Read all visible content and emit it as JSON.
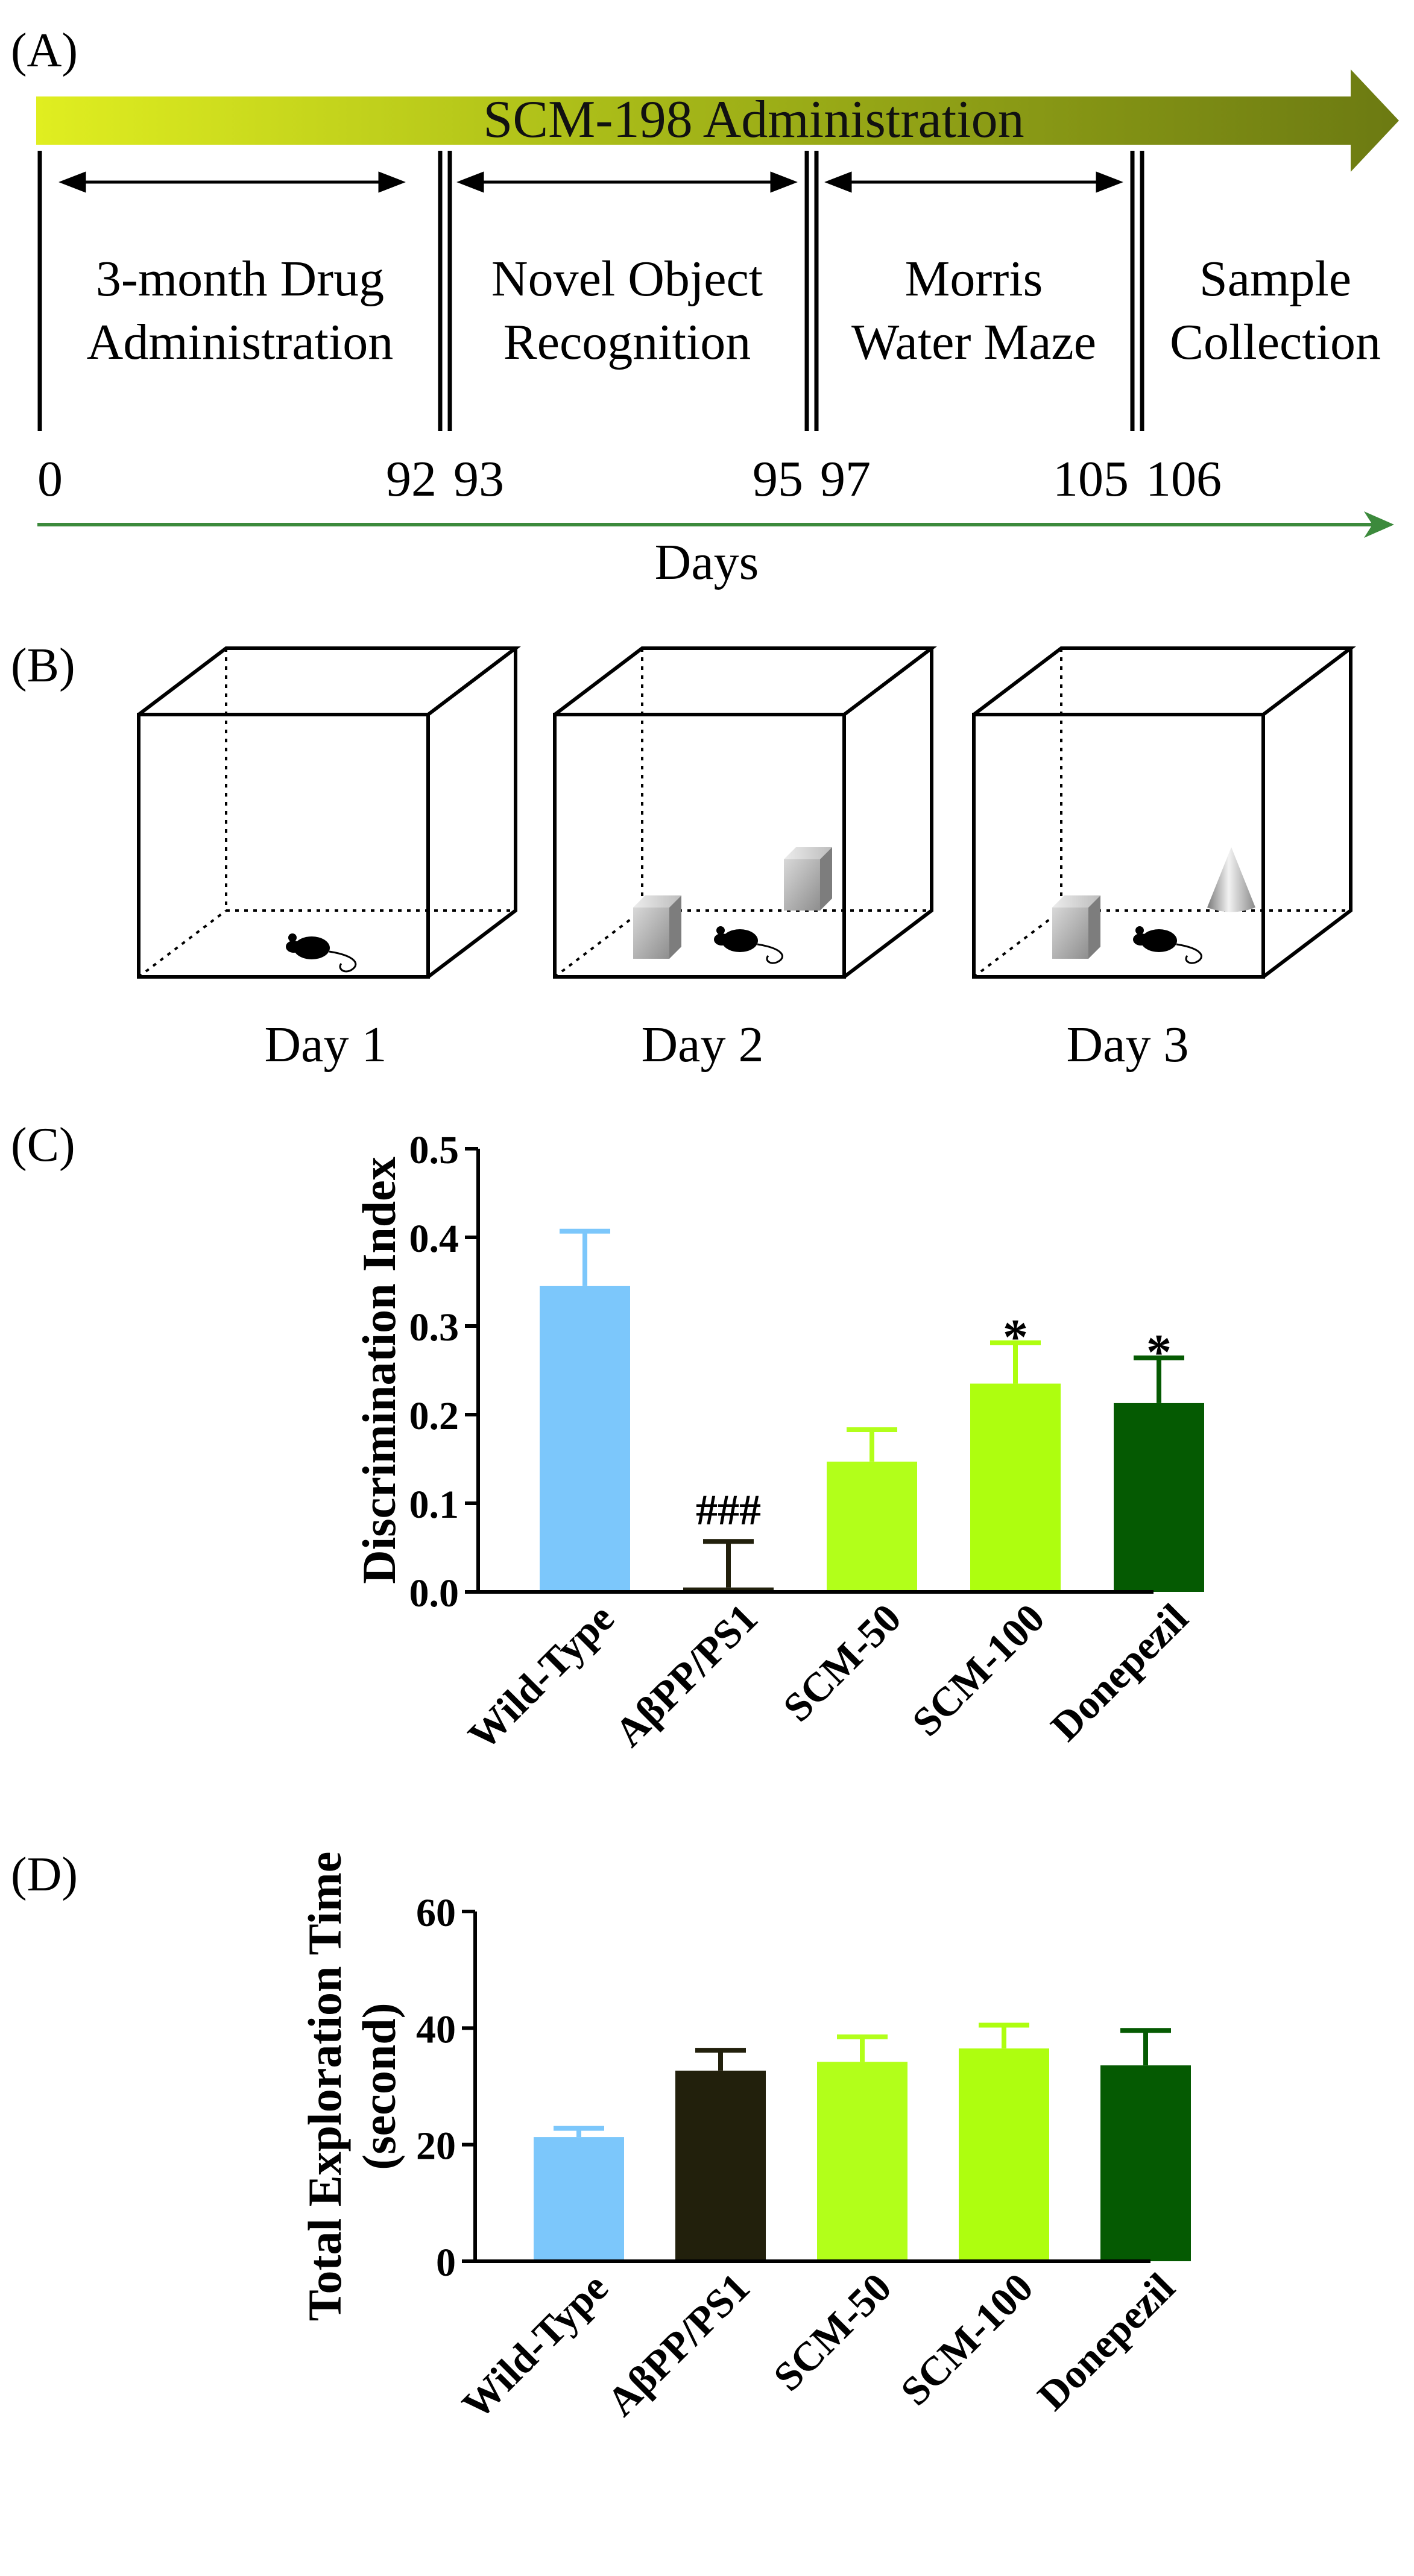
{
  "panels": {
    "A": {
      "label": "(A)",
      "arrow_title": "SCM-198 Administration",
      "phases": [
        {
          "line1": "3-month Drug",
          "line2": "Administration"
        },
        {
          "line1": "Novel Object",
          "line2": "Recognition"
        },
        {
          "line1": "Morris",
          "line2": "Water Maze"
        },
        {
          "line1": "Sample",
          "line2": "Collection"
        }
      ],
      "day_ticks": [
        "0",
        "92",
        "93",
        "95",
        "97",
        "105",
        "106"
      ],
      "axis_label": "Days"
    },
    "B": {
      "label": "(B)",
      "days": [
        "Day 1",
        "Day 2",
        "Day 3"
      ]
    },
    "C": {
      "label": "(C)"
    },
    "D": {
      "label": "(D)"
    }
  },
  "chart_data": [
    {
      "type": "bar",
      "panel": "C",
      "categories": [
        "Wild-Type",
        "AβPP/PS1",
        "SCM-50",
        "SCM-100",
        "Donepezil"
      ],
      "values": [
        0.345,
        0.005,
        0.147,
        0.235,
        0.213
      ],
      "errors": [
        0.062,
        0.052,
        0.036,
        0.046,
        0.051
      ],
      "annotations": [
        "",
        "###",
        "",
        "*",
        "*"
      ],
      "colors": [
        "#7cc7fb",
        "#22200c",
        "#b2ff1a",
        "#aefe0f",
        "#055a02"
      ],
      "ylabel": "Discrimination Index",
      "xlabel": "",
      "ylim": [
        0,
        0.5
      ],
      "yticks": [
        "0.0",
        "0.1",
        "0.2",
        "0.3",
        "0.4",
        "0.5"
      ]
    },
    {
      "type": "bar",
      "panel": "D",
      "categories": [
        "Wild-Type",
        "AβPP/PS1",
        "SCM-50",
        "SCM-100",
        "Donepezil"
      ],
      "values": [
        21.3,
        32.7,
        34.2,
        36.5,
        33.6
      ],
      "errors": [
        1.5,
        3.5,
        4.3,
        4.0,
        6.0
      ],
      "annotations": [
        "",
        "",
        "",
        "",
        ""
      ],
      "colors": [
        "#7cc7fb",
        "#22200c",
        "#b2ff1a",
        "#aefe0f",
        "#055a02"
      ],
      "ylabel": "Total Exploration Time",
      "ylabel2": "(second)",
      "xlabel": "",
      "ylim": [
        0,
        60
      ],
      "yticks": [
        "0",
        "20",
        "40",
        "60"
      ]
    }
  ]
}
